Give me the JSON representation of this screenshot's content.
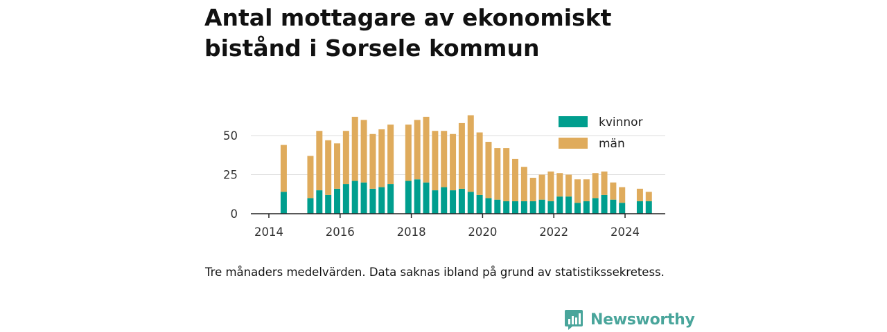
{
  "title": "Antal mottagare av ekonomiskt bistånd i Sorsele kommun",
  "caption": "Tre månaders medelvärden. Data saknas ibland på grund av statistikssekretess.",
  "brand": {
    "name": "Newsworthy",
    "logo_icon": "newsworthy-bar-chart-icon"
  },
  "colors": {
    "kvinnor": "#009e8e",
    "man": "#dfab5c",
    "axis": "#222222",
    "grid": "#dddddd"
  },
  "chart_data": {
    "type": "bar",
    "stacked": true,
    "x": [
      "2014-06",
      "2015-03",
      "2015-06",
      "2015-09",
      "2015-12",
      "2016-03",
      "2016-06",
      "2016-09",
      "2016-12",
      "2017-03",
      "2017-06",
      "2017-12",
      "2018-03",
      "2018-06",
      "2018-09",
      "2018-12",
      "2019-03",
      "2019-06",
      "2019-09",
      "2019-12",
      "2020-03",
      "2020-06",
      "2020-09",
      "2020-12",
      "2021-03",
      "2021-06",
      "2021-09",
      "2021-12",
      "2022-03",
      "2022-06",
      "2022-09",
      "2022-12",
      "2023-03",
      "2023-06",
      "2023-09",
      "2023-12",
      "2024-06",
      "2024-09"
    ],
    "series": [
      {
        "name": "kvinnor",
        "values": [
          14,
          10,
          15,
          12,
          16,
          19,
          21,
          20,
          16,
          17,
          19,
          21,
          22,
          20,
          15,
          17,
          15,
          16,
          14,
          12,
          10,
          9,
          8,
          8,
          8,
          8,
          9,
          8,
          11,
          11,
          7,
          8,
          10,
          12,
          9,
          7,
          8,
          8
        ]
      },
      {
        "name": "män",
        "values": [
          30,
          27,
          38,
          35,
          29,
          34,
          41,
          40,
          35,
          37,
          38,
          36,
          38,
          42,
          38,
          36,
          36,
          42,
          49,
          40,
          36,
          33,
          34,
          27,
          22,
          15,
          16,
          19,
          15,
          14,
          15,
          14,
          16,
          15,
          11,
          10,
          8,
          6
        ]
      }
    ],
    "xticks": [
      "2014",
      "2016",
      "2018",
      "2020",
      "2022",
      "2024"
    ],
    "yticks": [
      0,
      25,
      50
    ],
    "ylim": [
      0,
      65
    ],
    "grid": "horizontal",
    "legend": {
      "position": "top-right",
      "entries": [
        "kvinnor",
        "män"
      ]
    }
  }
}
